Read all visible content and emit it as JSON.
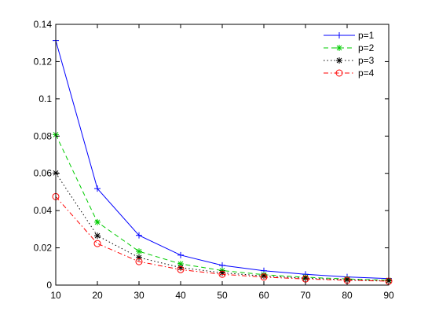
{
  "chart_data": {
    "type": "line",
    "title": "",
    "xlabel": "",
    "ylabel": "",
    "x": [
      10,
      20,
      30,
      40,
      50,
      60,
      70,
      80,
      90
    ],
    "xlim": [
      10,
      90
    ],
    "ylim": [
      0,
      0.14
    ],
    "xticks": [
      "10",
      "20",
      "30",
      "40",
      "50",
      "60",
      "70",
      "80",
      "90"
    ],
    "yticks": [
      "0",
      "0.02",
      "0.04",
      "0.06",
      "0.08",
      "0.1",
      "0.12",
      "0.14"
    ],
    "grid": false,
    "legend_position": "top-right",
    "series": [
      {
        "name": "p=1",
        "values": [
          0.1313,
          0.0518,
          0.0267,
          0.0161,
          0.0106,
          0.0077,
          0.0058,
          0.0044,
          0.0035
        ],
        "color": "#0000ff",
        "line": "solid",
        "marker": "plus"
      },
      {
        "name": "p=2",
        "values": [
          0.0808,
          0.0338,
          0.0181,
          0.0114,
          0.0078,
          0.0056,
          0.0042,
          0.0033,
          0.0026
        ],
        "color": "#00cc00",
        "line": "dashed",
        "marker": "star"
      },
      {
        "name": "p=3",
        "values": [
          0.0602,
          0.0265,
          0.0148,
          0.0094,
          0.0066,
          0.0049,
          0.0037,
          0.0029,
          0.0023
        ],
        "color": "#000000",
        "line": "dotted",
        "marker": "star"
      },
      {
        "name": "p=4",
        "values": [
          0.0475,
          0.0223,
          0.0126,
          0.0083,
          0.0058,
          0.0043,
          0.0033,
          0.0026,
          0.0021
        ],
        "color": "#ff0000",
        "line": "dashdot",
        "marker": "circle"
      }
    ]
  }
}
